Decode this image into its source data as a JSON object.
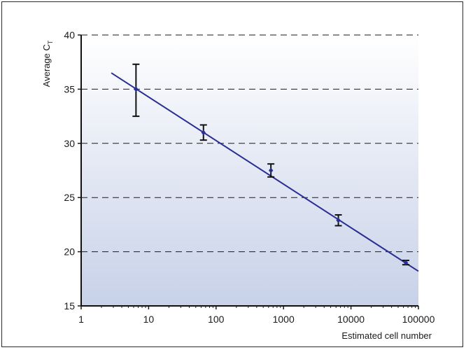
{
  "chart_data": {
    "type": "scatter",
    "xscale": "log",
    "xlim": [
      1,
      100000
    ],
    "ylim": [
      15,
      40
    ],
    "x_ticks": [
      "1",
      "10",
      "100",
      "1000",
      "10000",
      "100000"
    ],
    "y_ticks": [
      "15",
      "20",
      "25",
      "30",
      "35",
      "40"
    ],
    "xlabel": "Estimated cell number",
    "ylabel": "Average C",
    "ylabel_subscript": "T",
    "grid": "horizontal dashed",
    "series": [
      {
        "points": [
          {
            "x": 6.5,
            "y": 35.0,
            "err_low": 32.5,
            "err_high": 37.3
          },
          {
            "x": 65,
            "y": 31.0,
            "err_low": 30.3,
            "err_high": 31.7
          },
          {
            "x": 650,
            "y": 27.5,
            "err_low": 26.9,
            "err_high": 28.1
          },
          {
            "x": 6500,
            "y": 22.9,
            "err_low": 22.4,
            "err_high": 23.4
          },
          {
            "x": 65000,
            "y": 19.0,
            "err_low": 18.8,
            "err_high": 19.2
          }
        ]
      }
    ],
    "trendline": {
      "x": [
        2.8,
        100000
      ],
      "y": [
        36.5,
        18.2
      ]
    },
    "colors": {
      "line": "#2a2e93",
      "marker": "#2a2e93",
      "errorbar": "#111111",
      "background_top": "#ffffff",
      "background_bottom": "#c7d1e8"
    }
  }
}
